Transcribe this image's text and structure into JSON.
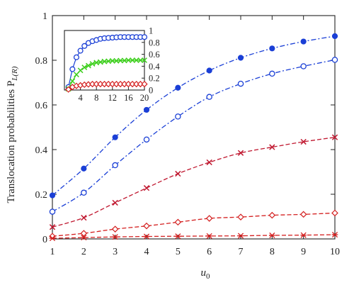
{
  "chart_data": [
    {
      "type": "line",
      "xlabel": "u",
      "xlabel_sub": "0",
      "ylabel": "Translocation probabilities P",
      "ylabel_sub": "L(R)",
      "xlim": [
        1,
        10
      ],
      "ylim": [
        0,
        1
      ],
      "xticks": [
        1,
        2,
        3,
        4,
        5,
        6,
        7,
        8,
        9,
        10
      ],
      "yticks": [
        0,
        0.2,
        0.4,
        0.6,
        0.8,
        1
      ],
      "ytick_labels": [
        "0",
        "0.2",
        "0.4",
        "0.6",
        "0.8",
        "1"
      ],
      "grid": false,
      "series": [
        {
          "marker": "filled-circle",
          "color": "#1a3fd6",
          "line": "dashdot",
          "x": [
            1,
            2,
            3,
            4,
            5,
            6,
            7,
            8,
            9,
            10
          ],
          "y": [
            0.195,
            0.315,
            0.455,
            0.578,
            0.677,
            0.754,
            0.811,
            0.853,
            0.884,
            0.908
          ]
        },
        {
          "marker": "open-circle",
          "color": "#1a3fd6",
          "line": "dashdot",
          "x": [
            1,
            2,
            3,
            4,
            5,
            6,
            7,
            8,
            9,
            10
          ],
          "y": [
            0.122,
            0.207,
            0.33,
            0.445,
            0.548,
            0.636,
            0.695,
            0.74,
            0.773,
            0.802
          ]
        },
        {
          "marker": "cross",
          "color": "#c01830",
          "line": "dashed",
          "x": [
            1,
            2,
            3,
            4,
            5,
            6,
            7,
            8,
            9,
            10
          ],
          "y": [
            0.053,
            0.095,
            0.162,
            0.228,
            0.292,
            0.343,
            0.385,
            0.411,
            0.435,
            0.455
          ]
        },
        {
          "marker": "open-diamond",
          "color": "#d42020",
          "line": "dashed",
          "x": [
            1,
            2,
            3,
            4,
            5,
            6,
            7,
            8,
            9,
            10
          ],
          "y": [
            0.012,
            0.025,
            0.044,
            0.058,
            0.075,
            0.092,
            0.098,
            0.106,
            0.11,
            0.116
          ]
        },
        {
          "marker": "asterisk",
          "color": "#d42020",
          "line": "dashed",
          "x": [
            1,
            2,
            3,
            4,
            5,
            6,
            7,
            8,
            9,
            10
          ],
          "y": [
            0.003,
            0.006,
            0.009,
            0.011,
            0.012,
            0.013,
            0.014,
            0.016,
            0.017,
            0.019
          ]
        }
      ]
    },
    {
      "type": "line",
      "inset": true,
      "xlim": [
        0,
        20
      ],
      "ylim": [
        0,
        1
      ],
      "xticks": [
        4,
        8,
        12,
        16,
        20
      ],
      "yticks": [
        0,
        0.2,
        0.4,
        0.6,
        0.8,
        1
      ],
      "ytick_labels": [
        "0",
        "0.2",
        "0.4",
        "0.6",
        "0.8",
        "1"
      ],
      "grid": false,
      "series": [
        {
          "marker": "open-circle",
          "color": "#1a3fd6",
          "line": "solid",
          "x": [
            1,
            2,
            3,
            4,
            5,
            6,
            7,
            8,
            9,
            10,
            11,
            12,
            13,
            14,
            15,
            16,
            17,
            18,
            19,
            20
          ],
          "y": [
            0.05,
            0.35,
            0.55,
            0.66,
            0.74,
            0.79,
            0.82,
            0.84,
            0.86,
            0.87,
            0.875,
            0.88,
            0.885,
            0.89,
            0.89,
            0.89,
            0.89,
            0.89,
            0.89,
            0.89
          ]
        },
        {
          "marker": "cross",
          "color": "#3ecf1e",
          "line": "solid",
          "x": [
            1,
            2,
            3,
            4,
            5,
            6,
            7,
            8,
            9,
            10,
            11,
            12,
            13,
            14,
            15,
            16,
            17,
            18,
            19,
            20
          ],
          "y": [
            0.02,
            0.15,
            0.26,
            0.33,
            0.38,
            0.41,
            0.44,
            0.46,
            0.47,
            0.48,
            0.485,
            0.49,
            0.49,
            0.495,
            0.495,
            0.5,
            0.5,
            0.5,
            0.5,
            0.5
          ]
        },
        {
          "marker": "open-diamond",
          "color": "#d42020",
          "line": "solid",
          "x": [
            1,
            2,
            3,
            4,
            5,
            6,
            7,
            8,
            9,
            10,
            11,
            12,
            13,
            14,
            15,
            16,
            17,
            18,
            19,
            20
          ],
          "y": [
            0.01,
            0.05,
            0.07,
            0.08,
            0.09,
            0.095,
            0.1,
            0.1,
            0.1,
            0.1,
            0.1,
            0.1,
            0.1,
            0.1,
            0.1,
            0.1,
            0.1,
            0.1,
            0.1,
            0.1
          ]
        }
      ]
    }
  ]
}
